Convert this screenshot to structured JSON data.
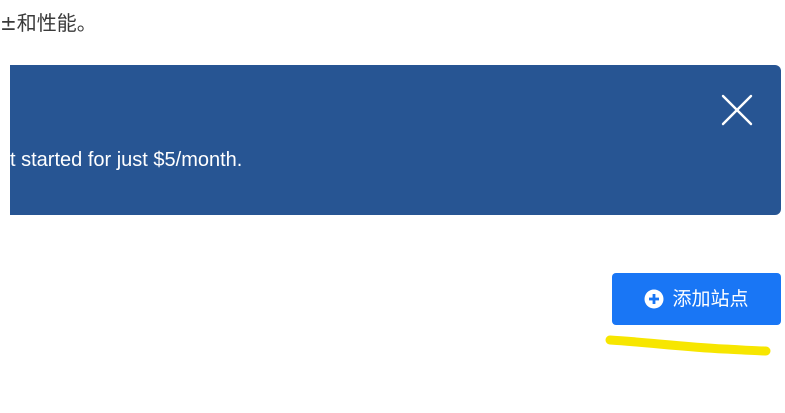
{
  "intro": {
    "text_fragment": "±和性能。"
  },
  "banner": {
    "text_fragment": "t started for just $5/month.",
    "close_icon": "close-icon",
    "background_color": "#275593"
  },
  "actions": {
    "add_site_label": "添加站点",
    "add_site_icon": "plus-circle-icon",
    "button_color": "#1976f5"
  },
  "annotation": {
    "highlight_color": "#f7e600"
  }
}
